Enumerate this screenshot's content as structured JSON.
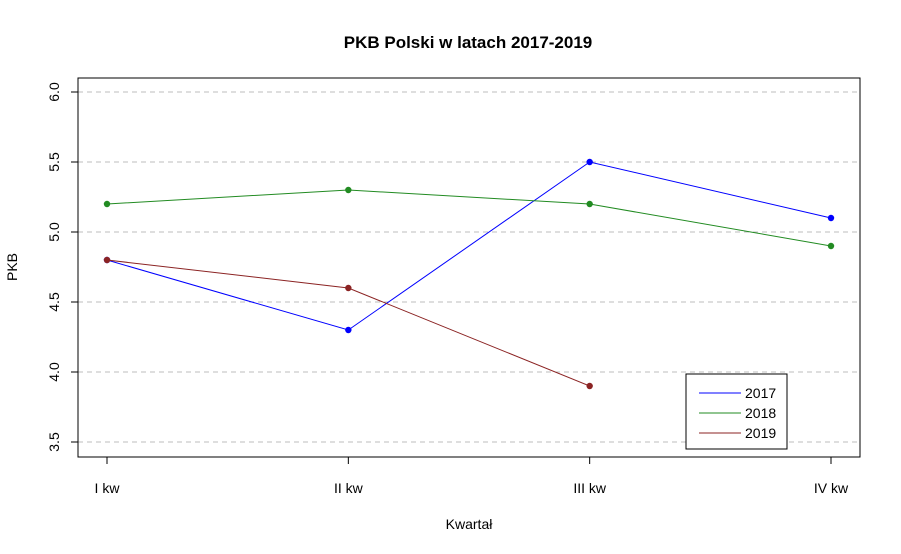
{
  "chart_data": {
    "type": "line",
    "title": "PKB Polski w latach 2017-2019",
    "xlabel": "Kwartał",
    "ylabel": "PKB",
    "categories": [
      "I kw",
      "II kw",
      "III kw",
      "IV kw"
    ],
    "yticks": [
      "3.5",
      "4.0",
      "4.5",
      "5.0",
      "5.5",
      "6.0"
    ],
    "ylim": [
      3.4,
      6.1
    ],
    "grid": "horizontal dashed",
    "legend_position": "bottom-right",
    "series": [
      {
        "name": "2017",
        "color": "#0000ff",
        "values": [
          4.8,
          4.3,
          5.5,
          5.1
        ]
      },
      {
        "name": "2018",
        "color": "#228b22",
        "values": [
          5.2,
          5.3,
          5.2,
          4.9
        ]
      },
      {
        "name": "2019",
        "color": "#8b2323",
        "values": [
          4.8,
          4.6,
          3.9,
          null
        ]
      }
    ]
  }
}
